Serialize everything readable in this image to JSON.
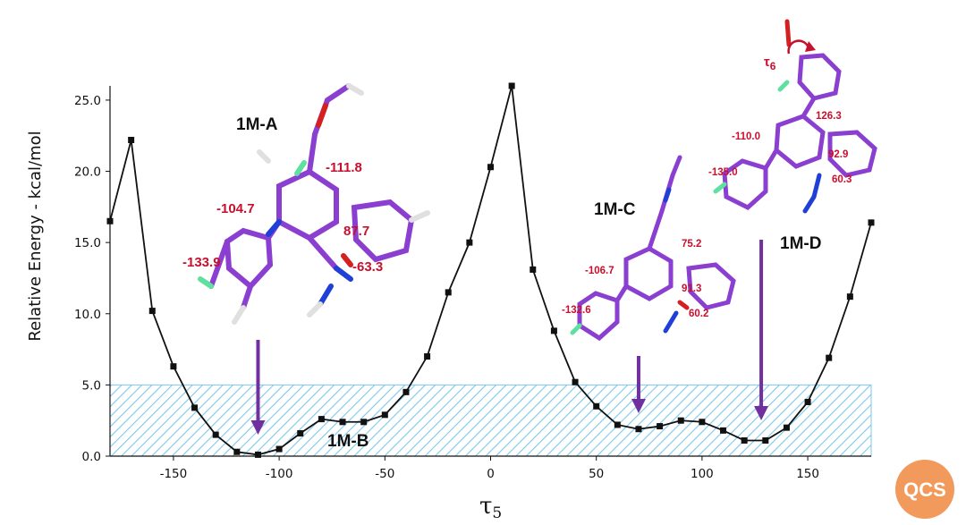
{
  "chart_data": {
    "type": "line",
    "xlabel": "τ",
    "xlabel_sub": "5",
    "ylabel": "Relative Energy - kcal/mol",
    "xlim": [
      -180,
      180
    ],
    "ylim": [
      0,
      26
    ],
    "x_ticks": [
      "-150",
      "-100",
      "-50",
      "0",
      "50",
      "100",
      "150"
    ],
    "x_tick_values": [
      -150,
      -100,
      -50,
      0,
      50,
      100,
      150
    ],
    "y_ticks": [
      "0.0",
      "5.0",
      "10.0",
      "15.0",
      "20.0",
      "25.0"
    ],
    "y_tick_values": [
      0,
      5,
      10,
      15,
      20,
      25
    ],
    "marker": "square",
    "line_color": "#111111",
    "shaded_region": {
      "y_from": 0,
      "y_to": 5,
      "pattern": "diagonal-hatch",
      "color": "#7ec8ea"
    },
    "series": [
      {
        "x": [
          -180,
          -170,
          -160,
          -150,
          -140,
          -130,
          -120,
          -110,
          -100,
          -90,
          -80,
          -70,
          -60,
          -50,
          -40,
          -30,
          -20,
          -10,
          0,
          10,
          20,
          30,
          40,
          50,
          60,
          70,
          80,
          90,
          100,
          110,
          120,
          130,
          140,
          150,
          160,
          170,
          180
        ],
        "y": [
          16.5,
          22.2,
          10.2,
          6.3,
          3.4,
          1.5,
          0.3,
          0.1,
          0.5,
          1.6,
          2.6,
          2.4,
          2.4,
          2.9,
          4.5,
          7.0,
          11.5,
          15.0,
          20.3,
          26.0,
          13.1,
          8.8,
          5.2,
          3.5,
          2.2,
          1.9,
          2.1,
          2.5,
          2.4,
          1.8,
          1.1,
          1.1,
          2.0,
          3.8,
          6.9,
          11.2,
          16.4
        ]
      }
    ],
    "annotations": {
      "conformers": [
        "1M-A",
        "1M-B",
        "1M-C",
        "1M-D"
      ],
      "arrows_at_x": [
        -110,
        70,
        128
      ],
      "angles_A": [
        "-111.8",
        "-104.7",
        "87.7",
        "-133.9",
        "-63.3"
      ],
      "angles_C": [
        "75.2",
        "-106.7",
        "91.3",
        "-132.6",
        "60.2"
      ],
      "angles_D": [
        "126.3",
        "-110.0",
        "92.9",
        "-135.0",
        "60.3"
      ],
      "torsion_label": "τ",
      "torsion_sub": "6"
    },
    "arrow_color": "#7030a0",
    "angle_color": "#c8102e"
  },
  "logo": {
    "text": "QCS",
    "color": "#f29a5b"
  }
}
